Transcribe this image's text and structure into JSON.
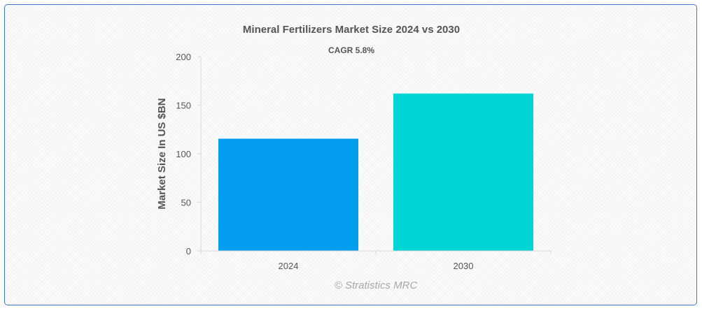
{
  "chart_data": {
    "type": "bar",
    "title": "Mineral Fertilizers Market Size 2024 vs 2030",
    "subtitle": "CAGR 5.8%",
    "ylabel": "Market Size In US $BN",
    "xlabel": "",
    "categories": [
      "2024",
      "2030"
    ],
    "values": [
      115.5,
      162.0
    ],
    "ylim": [
      0,
      200
    ],
    "yticks": [
      0,
      50,
      100,
      150,
      200
    ],
    "colors": [
      "#039def",
      "#03d4d4"
    ],
    "grid": false,
    "legend": "none"
  },
  "watermark": "© Stratistics MRC",
  "colors": {
    "border": "#3a78c9",
    "axis": "#d8d8d8",
    "text": "#555555"
  }
}
